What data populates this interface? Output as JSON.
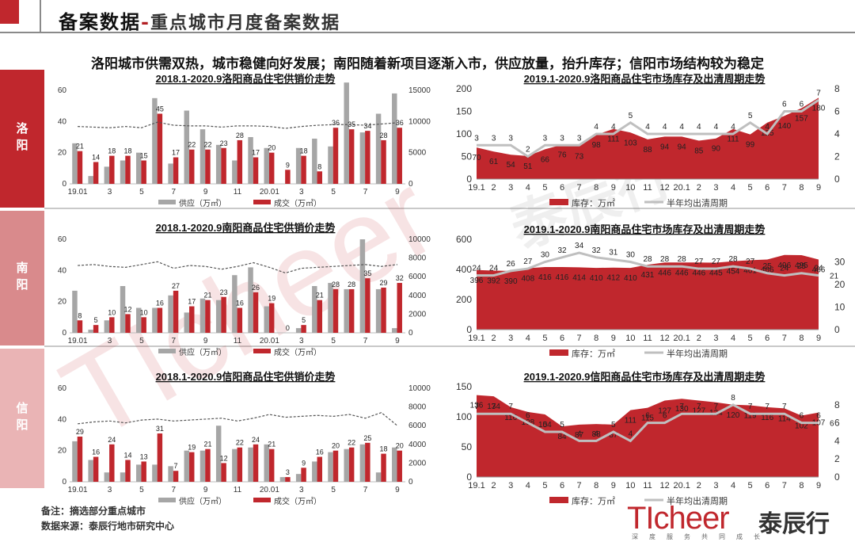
{
  "header": {
    "title": "备案数据",
    "separator": "-",
    "subtitle": "重点城市月度备案数据"
  },
  "headline": "洛阳城市供需双热，城市稳健向好发展；南阳随着新项目逐渐入市，供应放量，抬升库存；信阳市场结构较为稳定",
  "cities": [
    "洛阳",
    "南阳",
    "信阳"
  ],
  "colors": {
    "brand_red": "#c0272d",
    "supply_gray": "#a6a6a6",
    "deal_red": "#c0272d",
    "area_red": "#c0272d",
    "cycle_line": "#bfbfbf",
    "trend_dashed": "#555555",
    "tab_luoyang": "#c0272d",
    "tab_nanyang": "#d98a8c",
    "tab_xinyang": "#eab4b5"
  },
  "footnotes": {
    "note": "备注：摘选部分重点城市",
    "source": "数据来源：泰辰行地市研究中心"
  },
  "logo": {
    "brand": "TIcheer",
    "name_cn": "泰辰行",
    "slogan": "深度服务共同成长"
  },
  "watermark": "TIcheer 泰辰行",
  "chart_data": [
    {
      "id": "ly-supply",
      "type": "bar",
      "title": "2018.1-2020.9洛阳商品住宅供销价走势",
      "categories": [
        "19.01",
        "",
        "3",
        "",
        "5",
        "",
        "7",
        "",
        "9",
        "",
        "11",
        "",
        "20.01",
        "",
        "3",
        "",
        "5",
        "",
        "7",
        "",
        "9"
      ],
      "series": [
        {
          "name": "供应（万㎡）",
          "values": [
            26,
            5,
            11,
            15,
            20,
            55,
            13,
            47,
            35,
            25,
            15,
            30,
            23,
            0,
            23,
            29,
            24,
            65,
            33,
            45,
            58
          ]
        },
        {
          "name": "成交（万㎡）",
          "values": [
            21,
            14,
            18,
            18,
            15,
            45,
            17,
            22,
            22,
            23,
            28,
            17,
            20,
            9,
            18,
            8,
            36,
            35,
            34,
            28,
            36
          ]
        }
      ],
      "price_series": {
        "name": "",
        "values": [
          9200,
          9100,
          9000,
          9200,
          9000,
          9900,
          9400,
          9300,
          9300,
          9100,
          9300,
          9300,
          9200,
          8900,
          9200,
          9400,
          9500,
          9500,
          9400,
          9600,
          9800
        ]
      },
      "xticks": [
        "19.01",
        "3",
        "5",
        "7",
        "9",
        "11",
        "20.01",
        "3",
        "5",
        "7",
        "9"
      ],
      "ylim_left": [
        0,
        60
      ],
      "yticks_left": [
        "0",
        "20",
        "40",
        "60"
      ],
      "ylim_right": [
        0,
        15000
      ],
      "yticks_right": [
        "0",
        "5000",
        "10000",
        "15000"
      ],
      "legend": [
        "供应（万㎡）",
        "成交（万㎡）"
      ]
    },
    {
      "id": "ny-supply",
      "type": "bar",
      "title": "2018.1-2020.9南阳商品住宅供销价走势",
      "categories": [
        "19.01",
        "",
        "3",
        "",
        "5",
        "",
        "7",
        "",
        "9",
        "",
        "11",
        "",
        "20.01",
        "",
        "3",
        "",
        "5",
        "",
        "7",
        "",
        "9"
      ],
      "series": [
        {
          "name": "供应（万㎡）",
          "values": [
            27,
            2,
            8,
            30,
            16,
            16,
            24,
            13,
            22,
            21,
            37,
            42,
            17,
            0,
            3,
            30,
            32,
            28,
            60,
            28,
            3
          ]
        },
        {
          "name": "成交（万㎡）",
          "values": [
            8,
            5,
            10,
            12,
            10,
            16,
            27,
            17,
            21,
            23,
            16,
            26,
            19,
            0,
            5,
            21,
            28,
            28,
            35,
            29,
            32
          ]
        }
      ],
      "price_series": {
        "name": "",
        "values": [
          7200,
          7300,
          7100,
          7000,
          7300,
          7600,
          6900,
          7200,
          7100,
          6800,
          7100,
          7500,
          7000,
          6400,
          6900,
          7000,
          7100,
          7200,
          7300,
          7100,
          7300
        ]
      },
      "xticks": [
        "19.01",
        "3",
        "5",
        "7",
        "9",
        "11",
        "20.01",
        "3",
        "5",
        "7",
        "9"
      ],
      "ylim_left": [
        0,
        60
      ],
      "yticks_left": [
        "0",
        "20",
        "40",
        "60"
      ],
      "ylim_right": [
        0,
        10000
      ],
      "yticks_right": [
        "0",
        "2000",
        "4000",
        "6000",
        "8000",
        "10000"
      ],
      "legend": [
        "供应（万㎡）",
        "成交（万㎡）"
      ]
    },
    {
      "id": "xy-supply",
      "type": "bar",
      "title": "2018.1-2020.9信阳商品住宅供销价走势",
      "categories": [
        "19.01",
        "",
        "3",
        "",
        "5",
        "",
        "7",
        "",
        "9",
        "",
        "11",
        "",
        "20.01",
        "",
        "3",
        "",
        "5",
        "",
        "7",
        "",
        "9"
      ],
      "series": [
        {
          "name": "供应（万㎡）",
          "values": [
            26,
            14,
            6,
            6,
            11,
            11,
            10,
            20,
            20,
            36,
            21,
            22,
            24,
            3,
            5,
            13,
            19,
            21,
            24,
            6,
            22
          ]
        },
        {
          "name": "成交（万㎡）",
          "values": [
            29,
            16,
            24,
            14,
            13,
            31,
            7,
            19,
            21,
            12,
            22,
            24,
            21,
            3,
            9,
            16,
            20,
            22,
            25,
            18,
            20
          ]
        }
      ],
      "price_series": {
        "name": "",
        "values": [
          6200,
          6400,
          6500,
          6300,
          6600,
          6700,
          6500,
          6600,
          6700,
          6800,
          6500,
          6800,
          7200,
          6900,
          7000,
          7100,
          7000,
          7200,
          6800,
          7400,
          6000
        ]
      },
      "xticks": [
        "19.01",
        "3",
        "5",
        "7",
        "9",
        "11",
        "20.01",
        "3",
        "5",
        "7",
        "9"
      ],
      "ylim_left": [
        0,
        60
      ],
      "yticks_left": [
        "0",
        "20",
        "40",
        "60"
      ],
      "ylim_right": [
        0,
        10000
      ],
      "yticks_right": [
        "0",
        "2000",
        "4000",
        "6000",
        "8000",
        "10000"
      ],
      "legend": [
        "供应（万㎡）",
        "成交（万㎡）"
      ]
    },
    {
      "id": "ly-inv",
      "type": "area",
      "title": "2019.1-2020.9洛阳商品住宅市场库存及出清周期走势",
      "categories": [
        "19.1",
        "2",
        "3",
        "4",
        "5",
        "6",
        "7",
        "8",
        "9",
        "10",
        "11",
        "12",
        "20.1",
        "2",
        "3",
        "4",
        "5",
        "6",
        "7",
        "8",
        "9"
      ],
      "series": [
        {
          "name": "库存：万㎡",
          "values": [
            70,
            61,
            54,
            51,
            66,
            76,
            73,
            98,
            111,
            103,
            88,
            94,
            94,
            85,
            90,
            111,
            99,
            125,
            140,
            157,
            180
          ]
        },
        {
          "name": "半年均出清周期",
          "values": [
            3,
            3,
            3,
            2,
            3,
            3,
            3,
            4,
            4,
            5,
            4,
            4,
            4,
            4,
            4,
            4,
            5,
            4,
            6,
            6,
            7
          ]
        }
      ],
      "ylim_left": [
        0,
        200
      ],
      "yticks_left": [
        "0",
        "50",
        "100",
        "150",
        "200"
      ],
      "ylim_right": [
        0,
        8
      ],
      "yticks_right": [
        "0",
        "2",
        "4",
        "6",
        "8"
      ],
      "legend": [
        "库存：万㎡",
        "半年均出清周期"
      ]
    },
    {
      "id": "ny-inv",
      "type": "area",
      "title": "2019.1-2020.9南阳商品住宅市场库存及出清周期走势",
      "categories": [
        "19.1",
        "2",
        "3",
        "4",
        "5",
        "6",
        "7",
        "8",
        "9",
        "10",
        "11",
        "12",
        "20.1",
        "2",
        "3",
        "4",
        "5",
        "6",
        "7",
        "8",
        "9"
      ],
      "series": [
        {
          "name": "库存：万㎡",
          "values": [
            396,
            392,
            390,
            408,
            416,
            416,
            414,
            410,
            412,
            410,
            431,
            446,
            446,
            446,
            445,
            454,
            461,
            466,
            496,
            495,
            466
          ]
        },
        {
          "name": "半年均出清周期",
          "values": [
            24,
            24,
            26,
            27,
            30,
            32,
            34,
            32,
            31,
            30,
            28,
            28,
            28,
            27,
            27,
            28,
            27,
            25,
            24,
            25,
            24
          ]
        }
      ],
      "extra_label": "21",
      "ylim_left": [
        0,
        600
      ],
      "yticks_left": [
        "0",
        "200",
        "400",
        "600"
      ],
      "ylim_right": [
        0,
        40
      ],
      "yticks_right": [
        "0",
        "10",
        "20",
        "30"
      ],
      "legend": [
        "库存：万㎡",
        "半年均出清周期"
      ]
    },
    {
      "id": "xy-inv",
      "type": "area",
      "title": "2019.1-2020.9信阳商品住宅市场库存及出清周期走势",
      "categories": [
        "19.1",
        "2",
        "3",
        "4",
        "5",
        "6",
        "7",
        "8",
        "9",
        "10",
        "11",
        "12",
        "20.1",
        "2",
        "3",
        "4",
        "5",
        "6",
        "7",
        "8",
        "9"
      ],
      "series": [
        {
          "name": "库存：万㎡",
          "values": [
            136,
            134,
            116,
            108,
            104,
            84,
            87,
            88,
            87,
            111,
            115,
            127,
            130,
            127,
            124,
            120,
            119,
            116,
            114,
            102,
            107
          ]
        },
        {
          "name": "半年均出清周期",
          "values": [
            7,
            7,
            7,
            6,
            5,
            5,
            4,
            4,
            5,
            4,
            6,
            6,
            7,
            7,
            7,
            8,
            7,
            7,
            7,
            6,
            6
          ]
        }
      ],
      "extra_label": "6",
      "ylim_left": [
        0,
        150
      ],
      "yticks_left": [
        "0",
        "50",
        "100",
        "150"
      ],
      "ylim_right": [
        0,
        10
      ],
      "yticks_right": [
        "0",
        "2",
        "4",
        "6",
        "8"
      ],
      "legend": [
        "库存：万㎡",
        "半年均出清周期"
      ]
    }
  ]
}
